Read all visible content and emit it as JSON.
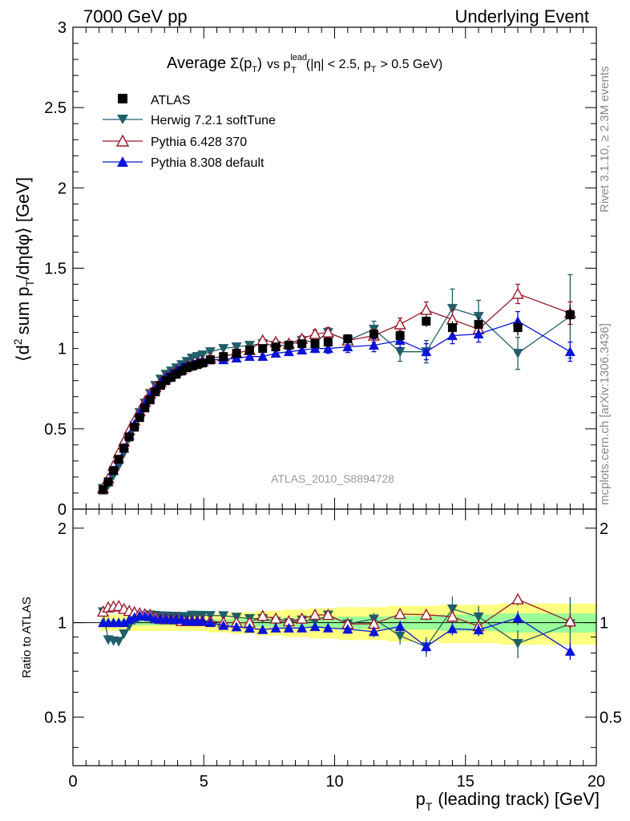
{
  "header": {
    "left": "7000 GeV pp",
    "right": "Underlying Event"
  },
  "side_labels": {
    "rivet": "Rivet 3.1.10, ≥ 2.3M events",
    "mcplots": "mcplots.cern.ch [arXiv:1306.3436]"
  },
  "chart_data": {
    "type": "scatter",
    "title": "Average Σ(pT) vs pT lead (|η| < 2.5, pT > 0.5 GeV)",
    "title_parts": {
      "average": "Average",
      "sigma": "Σ(p",
      "sigma_sub": "T",
      "sigma_close": ")",
      "vs": "vs p",
      "vs_sup": "lead",
      "vs_sub": "T",
      "cuts_a": "(|η| < 2.5, p",
      "cuts_sub": "T",
      "cuts_b": "> 0.5 GeV)"
    },
    "analysis_id": "ATLAS_2010_S8894728",
    "ylabel_parts": {
      "open": "⟨d",
      "sup": "2",
      "sum": "sum p",
      "sub": "T",
      "rest": "/dηdφ⟩ [GeV]"
    },
    "ratio_ylabel": "Ratio to ATLAS",
    "xlabel_parts": {
      "p": "p",
      "sub": "T",
      "rest": "(leading track) [GeV]"
    },
    "xlim": [
      0,
      20
    ],
    "ylim": [
      0,
      3
    ],
    "ratio_ylim": [
      0.35,
      2.3
    ],
    "x_ticks": [
      "0",
      "5",
      "10",
      "15",
      "20"
    ],
    "y_ticks": [
      "0",
      "0.5",
      "1",
      "1.5",
      "2",
      "2.5",
      "3"
    ],
    "ratio_y_ticks": [
      "0.5",
      "1",
      "2"
    ],
    "x": [
      1.15,
      1.35,
      1.55,
      1.75,
      1.95,
      2.15,
      2.35,
      2.55,
      2.75,
      2.95,
      3.15,
      3.35,
      3.55,
      3.75,
      3.95,
      4.15,
      4.35,
      4.55,
      4.75,
      4.95,
      5.25,
      5.75,
      6.25,
      6.75,
      7.25,
      7.75,
      8.25,
      8.75,
      9.25,
      9.75,
      10.5,
      11.5,
      12.5,
      13.5,
      14.5,
      15.5,
      17.0,
      19.0
    ],
    "data": {
      "name": "ATLAS",
      "values": [
        0.12,
        0.17,
        0.24,
        0.31,
        0.38,
        0.45,
        0.51,
        0.57,
        0.63,
        0.68,
        0.73,
        0.77,
        0.8,
        0.82,
        0.84,
        0.86,
        0.88,
        0.89,
        0.9,
        0.91,
        0.93,
        0.95,
        0.97,
        0.99,
        1.0,
        1.01,
        1.02,
        1.03,
        1.03,
        1.04,
        1.06,
        1.09,
        1.08,
        1.17,
        1.13,
        1.15,
        1.13,
        1.21
      ],
      "errors": [
        0.005,
        0.005,
        0.005,
        0.005,
        0.005,
        0.005,
        0.005,
        0.005,
        0.005,
        0.005,
        0.005,
        0.005,
        0.005,
        0.005,
        0.005,
        0.005,
        0.005,
        0.005,
        0.005,
        0.005,
        0.008,
        0.008,
        0.01,
        0.01,
        0.01,
        0.012,
        0.015,
        0.015,
        0.018,
        0.02,
        0.02,
        0.025,
        0.03,
        0.035,
        0.04,
        0.045,
        0.05,
        0.06
      ],
      "ratio_band_inner": [
        0.02,
        0.02,
        0.02,
        0.02,
        0.02,
        0.02,
        0.02,
        0.02,
        0.02,
        0.02,
        0.02,
        0.02,
        0.02,
        0.02,
        0.02,
        0.02,
        0.02,
        0.02,
        0.02,
        0.02,
        0.025,
        0.025,
        0.03,
        0.03,
        0.03,
        0.03,
        0.035,
        0.035,
        0.04,
        0.04,
        0.045,
        0.045,
        0.05,
        0.05,
        0.06,
        0.06,
        0.07,
        0.07
      ],
      "ratio_band_outer": [
        0.06,
        0.06,
        0.06,
        0.06,
        0.06,
        0.06,
        0.06,
        0.06,
        0.06,
        0.06,
        0.06,
        0.06,
        0.06,
        0.06,
        0.06,
        0.06,
        0.06,
        0.06,
        0.06,
        0.06,
        0.07,
        0.07,
        0.08,
        0.08,
        0.09,
        0.09,
        0.1,
        0.1,
        0.11,
        0.11,
        0.12,
        0.12,
        0.13,
        0.13,
        0.14,
        0.14,
        0.15,
        0.15
      ],
      "color": "#000000"
    },
    "series": [
      {
        "name": "Herwig 7.2.1 softTune",
        "color": "#1f5f6a",
        "marker": "triangle-down-filled",
        "values": [
          0.13,
          0.15,
          0.21,
          0.27,
          0.35,
          0.44,
          0.52,
          0.6,
          0.66,
          0.72,
          0.77,
          0.81,
          0.84,
          0.86,
          0.88,
          0.9,
          0.92,
          0.94,
          0.95,
          0.96,
          0.98,
          1.0,
          1.01,
          1.02,
          1.03,
          1.02,
          1.02,
          1.05,
          1.04,
          1.1,
          1.05,
          1.12,
          0.98,
          0.98,
          1.25,
          1.2,
          0.97,
          1.2
        ],
        "errors": [
          0.005,
          0.005,
          0.005,
          0.005,
          0.005,
          0.005,
          0.005,
          0.005,
          0.005,
          0.005,
          0.005,
          0.005,
          0.005,
          0.005,
          0.005,
          0.005,
          0.005,
          0.005,
          0.005,
          0.005,
          0.01,
          0.01,
          0.012,
          0.012,
          0.014,
          0.015,
          0.018,
          0.02,
          0.025,
          0.03,
          0.035,
          0.05,
          0.06,
          0.07,
          0.12,
          0.1,
          0.1,
          0.26
        ]
      },
      {
        "name": "Pythia 6.428 370",
        "color": "#9a1a2a",
        "marker": "triangle-up-open",
        "values": [
          0.13,
          0.19,
          0.27,
          0.35,
          0.42,
          0.49,
          0.55,
          0.61,
          0.67,
          0.72,
          0.76,
          0.79,
          0.82,
          0.84,
          0.86,
          0.87,
          0.89,
          0.9,
          0.91,
          0.92,
          0.94,
          0.95,
          0.97,
          0.99,
          1.05,
          1.04,
          1.03,
          1.06,
          1.09,
          1.1,
          1.05,
          1.08,
          1.15,
          1.24,
          1.18,
          1.12,
          1.34,
          1.22
        ],
        "errors": [
          0.005,
          0.005,
          0.005,
          0.005,
          0.005,
          0.005,
          0.005,
          0.005,
          0.005,
          0.005,
          0.005,
          0.005,
          0.005,
          0.005,
          0.005,
          0.005,
          0.005,
          0.005,
          0.005,
          0.005,
          0.01,
          0.01,
          0.012,
          0.012,
          0.014,
          0.015,
          0.018,
          0.02,
          0.025,
          0.03,
          0.035,
          0.04,
          0.04,
          0.05,
          0.06,
          0.05,
          0.06,
          0.07
        ]
      },
      {
        "name": "Pythia 8.308 default",
        "color": "#0a14d8",
        "marker": "triangle-up-filled",
        "values": [
          0.12,
          0.17,
          0.24,
          0.31,
          0.38,
          0.46,
          0.53,
          0.6,
          0.66,
          0.71,
          0.75,
          0.79,
          0.82,
          0.84,
          0.86,
          0.88,
          0.89,
          0.9,
          0.91,
          0.92,
          0.93,
          0.93,
          0.94,
          0.95,
          0.95,
          0.97,
          0.98,
          0.99,
          1.0,
          1.0,
          1.01,
          1.02,
          1.05,
          0.98,
          1.08,
          1.09,
          1.17,
          0.98
        ],
        "errors": [
          0.005,
          0.005,
          0.005,
          0.005,
          0.005,
          0.005,
          0.005,
          0.005,
          0.005,
          0.005,
          0.005,
          0.005,
          0.005,
          0.005,
          0.005,
          0.005,
          0.005,
          0.005,
          0.005,
          0.005,
          0.01,
          0.01,
          0.012,
          0.012,
          0.014,
          0.015,
          0.018,
          0.02,
          0.025,
          0.03,
          0.035,
          0.04,
          0.045,
          0.05,
          0.05,
          0.05,
          0.06,
          0.06
        ]
      }
    ],
    "ratio_band_colors": {
      "inner": "#99ff99",
      "outer": "#ffff80"
    },
    "legend_position": "top-left"
  }
}
